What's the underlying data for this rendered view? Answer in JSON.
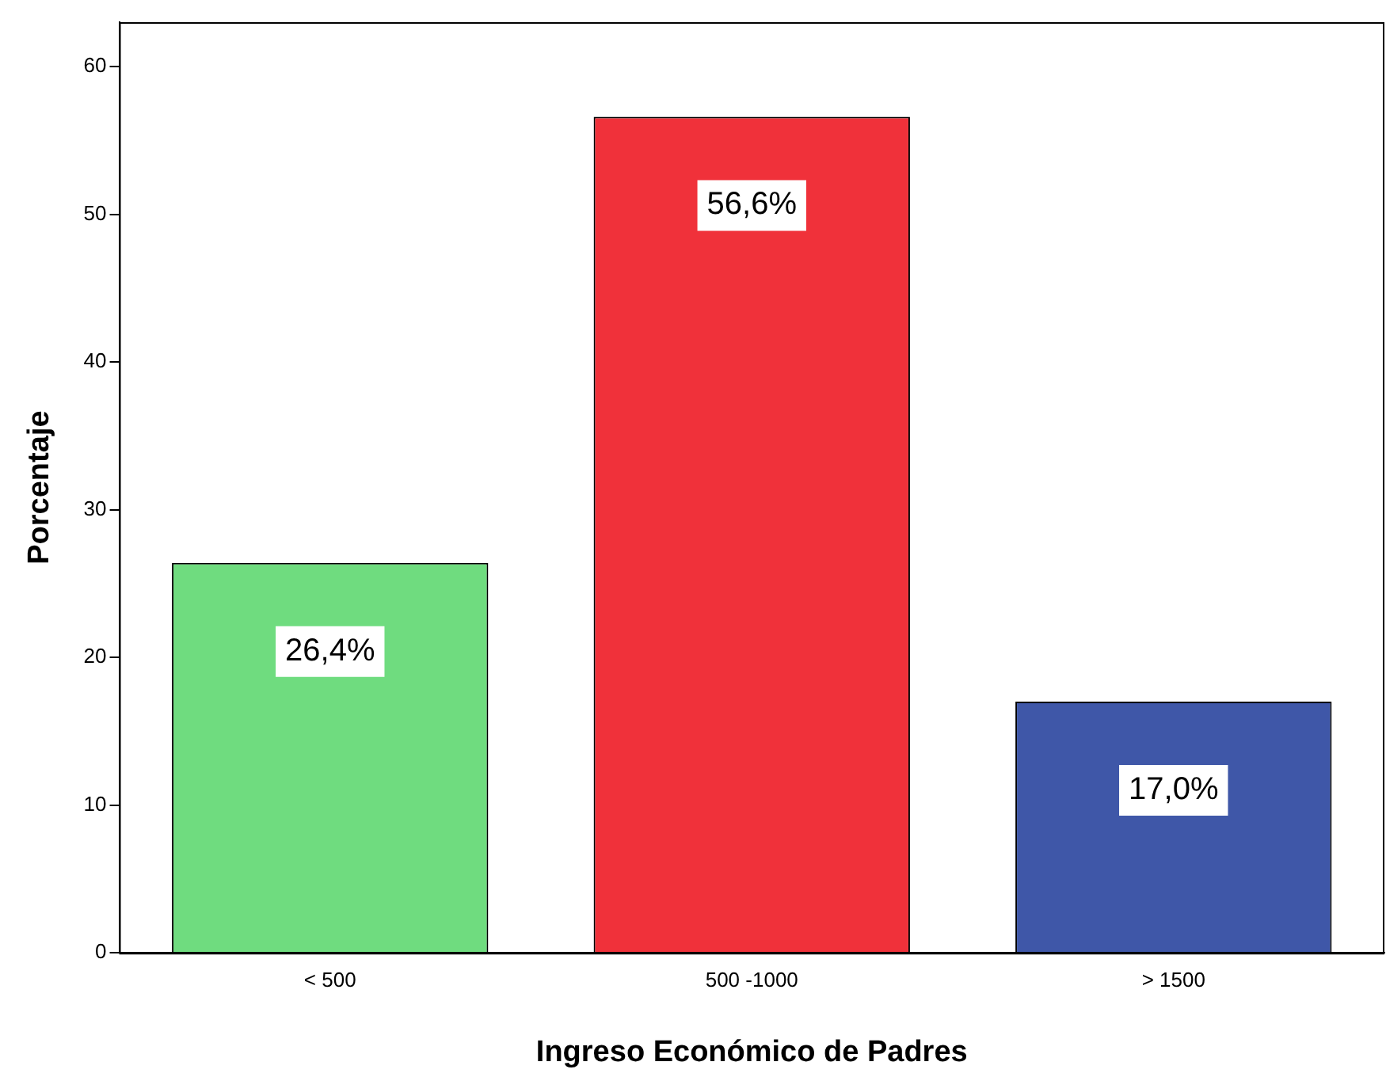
{
  "chart_data": {
    "type": "bar",
    "xlabel": "Ingreso Económico de Padres",
    "ylabel": "Porcentaje",
    "categories": [
      "< 500",
      "500 -1000",
      "> 1500"
    ],
    "values": [
      26.4,
      56.6,
      17.0
    ],
    "colors": [
      "#6fdc7f",
      "#f0313a",
      "#3f57a8"
    ],
    "value_labels": [
      "26,4%",
      "56,6%",
      "17,0%"
    ],
    "ylim": [
      0,
      63
    ],
    "yticks": [
      0,
      10,
      20,
      30,
      40,
      50,
      60
    ],
    "grid": false,
    "legend": false
  }
}
